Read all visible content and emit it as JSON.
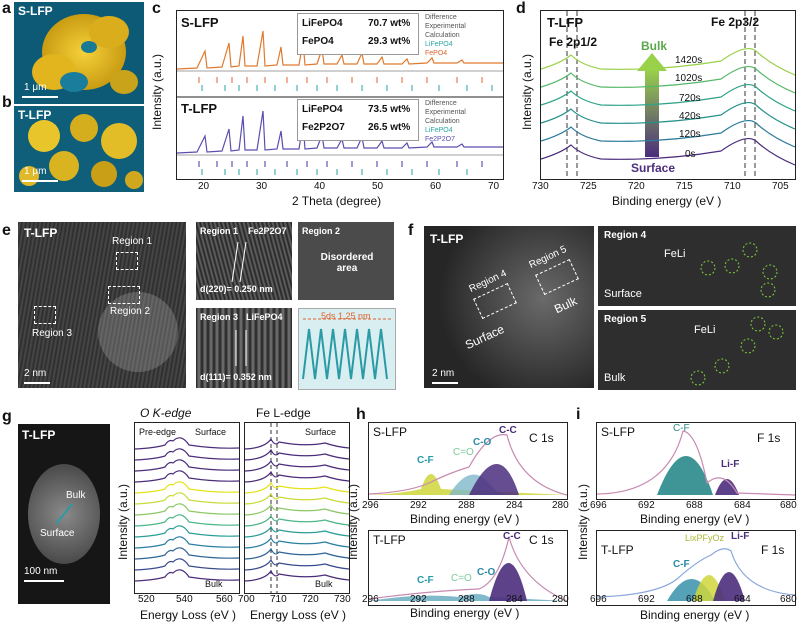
{
  "panels": {
    "a": {
      "letter": "a",
      "label": "S-LFP",
      "scale": "1 μm"
    },
    "b": {
      "letter": "b",
      "label": "T-LFP",
      "scale": "1 μm"
    },
    "c": {
      "letter": "c",
      "xlabel": "2 Theta (degree)",
      "ylabel": "Intensity (a.u.)",
      "xticks": [
        "20",
        "30",
        "40",
        "50",
        "60",
        "70"
      ],
      "top": {
        "label": "S-LFP",
        "phases": [
          {
            "name": "LiFePO4",
            "value": "70.7 wt%"
          },
          {
            "name": "FePO4",
            "value": "29.3 wt%"
          }
        ],
        "legend": [
          "Difference",
          "Experimental",
          "Calculation",
          "LiFePO4",
          "FePO4"
        ]
      },
      "bottom": {
        "label": "T-LFP",
        "phases": [
          {
            "name": "LiFePO4",
            "value": "73.5 wt%"
          },
          {
            "name": "Fe2P2O7",
            "value": "26.5 wt%"
          }
        ],
        "legend": [
          "Difference",
          "Experimental",
          "Calculation",
          "LiFePO4",
          "Fe2P2O7"
        ]
      }
    },
    "d": {
      "letter": "d",
      "title": "T-LFP",
      "peak_left": "Fe 2p1/2",
      "peak_right": "Fe 2p3/2",
      "xlabel": "Binding energy (eV )",
      "ylabel": "Intensity (a.u.)",
      "xticks": [
        "730",
        "725",
        "720",
        "715",
        "710",
        "705"
      ],
      "times": [
        "1420s",
        "1020s",
        "720s",
        "420s",
        "120s",
        "0s"
      ],
      "arrow_top": "Bulk",
      "arrow_bottom": "Surface",
      "colors": [
        "#9ad14b",
        "#56b96a",
        "#2ea38a",
        "#239089",
        "#2a7a9a",
        "#4b2d7c"
      ]
    },
    "e": {
      "letter": "e",
      "main_label": "T-LFP",
      "region1": "Region 1",
      "region2": "Region 2",
      "region3": "Region 3",
      "scale": "2 nm",
      "r1_label": "Region 1",
      "r1_phase": "Fe2P2O7",
      "r1_d": "d(220)= 0.250 nm",
      "r2_label": "Region 2",
      "r2_text": "Disordered area",
      "r3_label": "Region 3",
      "r3_phase": "LiFePO4",
      "r3_d": "d(111)= 0.352 nm",
      "profile_label": "5ds 1.25 nm"
    },
    "f": {
      "letter": "f",
      "main_label": "T-LFP",
      "region4": "Region 4",
      "region5": "Region 5",
      "surface": "Surface",
      "bulk": "Bulk",
      "scale": "2 nm",
      "r4_label": "Region 4",
      "r4_fe": "FeLi",
      "r4_pos": "Surface",
      "r5_label": "Region 5",
      "r5_fe": "FeLi",
      "r5_pos": "Bulk"
    },
    "g": {
      "letter": "g",
      "main_label": "T-LFP",
      "bulk": "Bulk",
      "surface": "Surface",
      "scale": "100 nm",
      "o_title": "O K-edge",
      "o_pre": "Pre-edge",
      "o_surface": "Surface",
      "o_bulk": "Bulk",
      "o_xticks": [
        "520",
        "540",
        "560"
      ],
      "fe_title": "Fe L-edge",
      "fe_surface": "Surface",
      "fe_bulk": "Bulk",
      "fe_xticks": [
        "700",
        "710",
        "720",
        "730"
      ],
      "xlabel": "Energy Loss (eV )",
      "ylabel": "Intensity (a.u.)",
      "colors": [
        "#4b2d7c",
        "#4b2d7c",
        "#4b2d7c",
        "#4b2d7c",
        "#e6e21a",
        "#c9dc3a",
        "#8cc864",
        "#4fb58a",
        "#2a9e97",
        "#2a7fa0",
        "#2f6497",
        "#3a4b8f",
        "#4b2d7c"
      ]
    },
    "h": {
      "letter": "h",
      "top_label": "S-LFP",
      "top_core": "C 1s",
      "bottom_label": "T-LFP",
      "bottom_core": "C 1s",
      "peaks": [
        "C-F",
        "C=O",
        "C-O",
        "C-C"
      ],
      "xlabel": "Binding energy (eV )",
      "ylabel": "Intensity (a.u.)",
      "xticks": [
        "296",
        "292",
        "288",
        "284",
        "280"
      ]
    },
    "i": {
      "letter": "i",
      "top_label": "S-LFP",
      "top_core": "F 1s",
      "bottom_label": "T-LFP",
      "bottom_core": "F 1s",
      "top_peaks": [
        "C-F",
        "Li-F"
      ],
      "bottom_peaks": [
        "C-F",
        "LixPFyOz",
        "Li-F"
      ],
      "xlabel": "Binding energy (eV )",
      "ylabel": "Intensity (a.u.)",
      "xticks": [
        "696",
        "692",
        "688",
        "684",
        "680"
      ]
    }
  }
}
